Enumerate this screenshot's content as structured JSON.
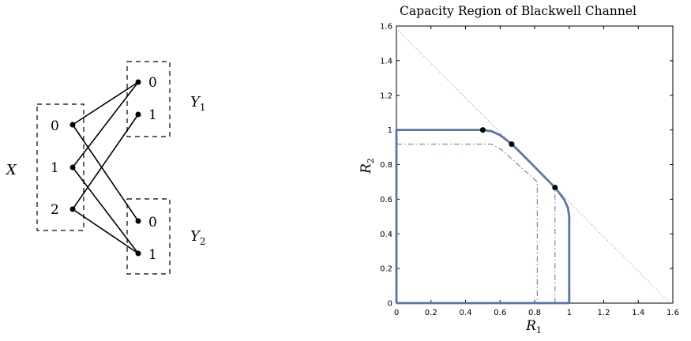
{
  "diagram": {
    "input_label": "X",
    "input_symbols": [
      "0",
      "1",
      "2"
    ],
    "outputs": [
      {
        "label": "Y",
        "subscript": "1",
        "symbols": [
          "0",
          "1"
        ]
      },
      {
        "label": "Y",
        "subscript": "2",
        "symbols": [
          "0",
          "1"
        ]
      }
    ],
    "edges_y1": [
      [
        0,
        0
      ],
      [
        1,
        0
      ],
      [
        2,
        1
      ]
    ],
    "edges_y2": [
      [
        0,
        0
      ],
      [
        1,
        1
      ],
      [
        2,
        1
      ]
    ]
  },
  "chart_data": {
    "type": "line",
    "title": "Capacity Region of Blackwell Channel",
    "xlabel_main": "R",
    "xlabel_sub": "1",
    "ylabel_main": "R",
    "ylabel_sub": "2",
    "xlim": [
      0,
      1.6
    ],
    "ylim": [
      0,
      1.6
    ],
    "xticks": [
      "0",
      "0.2",
      "0.4",
      "0.6",
      "0.8",
      "1",
      "1.2",
      "1.4",
      "1.6"
    ],
    "yticks": [
      "0",
      "0.2",
      "0.4",
      "0.6",
      "0.8",
      "1",
      "1.2",
      "1.4",
      "1.6"
    ],
    "colors": {
      "region": "#5b73a8",
      "inner": "#5b73a8",
      "sum_line": "#888888",
      "points": "#000000"
    },
    "series": [
      {
        "style": "solid",
        "points": [
          [
            0,
            0
          ],
          [
            0,
            1
          ],
          [
            0.5,
            1
          ],
          [
            0.55,
            0.993
          ],
          [
            0.6,
            0.97
          ],
          [
            0.64,
            0.94
          ],
          [
            0.667,
            0.918
          ],
          [
            0.7,
            0.887
          ],
          [
            0.8,
            0.787
          ],
          [
            0.918,
            0.667
          ],
          [
            0.94,
            0.64
          ],
          [
            0.97,
            0.6
          ],
          [
            0.993,
            0.55
          ],
          [
            1,
            0.5
          ],
          [
            1,
            0
          ],
          [
            0,
            0
          ]
        ]
      },
      {
        "style": "dashdot",
        "points": [
          [
            0,
            0.918
          ],
          [
            0.55,
            0.918
          ],
          [
            0.61,
            0.885
          ],
          [
            0.815,
            0.7
          ],
          [
            0.815,
            0
          ]
        ]
      },
      {
        "style": "dashdot",
        "points": [
          [
            0.918,
            0
          ],
          [
            0.918,
            0.667
          ],
          [
            0.667,
            0.918
          ]
        ]
      },
      {
        "style": "dotted",
        "points": [
          [
            0,
            1.585
          ],
          [
            1.585,
            0
          ]
        ]
      }
    ],
    "marked_points": [
      [
        0.5,
        1.0
      ],
      [
        0.667,
        0.918
      ],
      [
        0.918,
        0.667
      ]
    ]
  }
}
